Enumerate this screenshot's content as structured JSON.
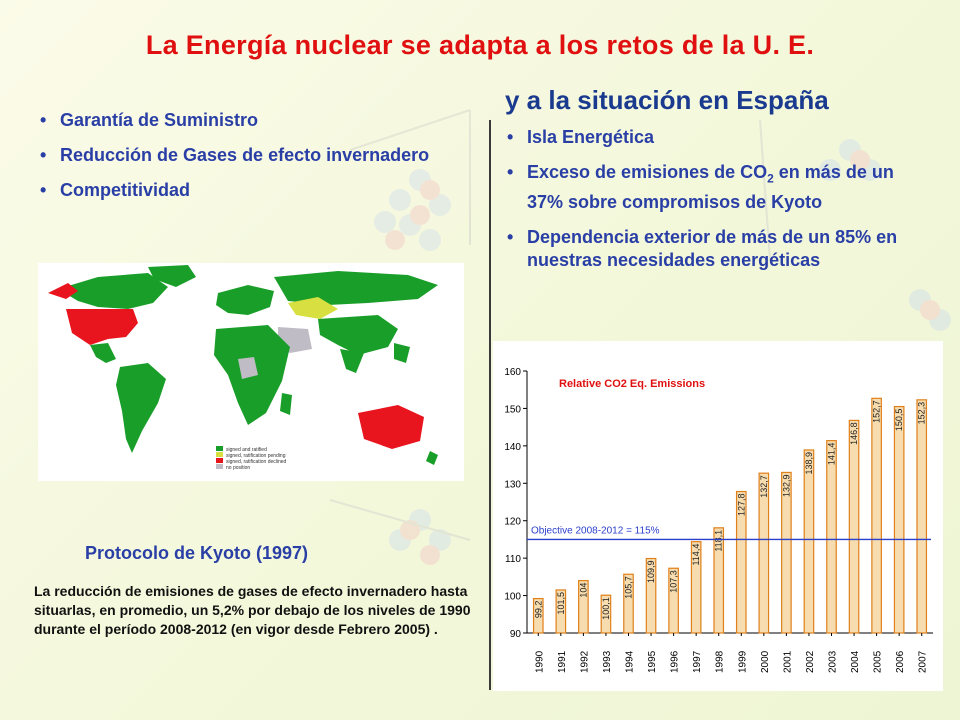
{
  "slide": {
    "title": "La Energía nuclear se adapta a los retos de la U. E.",
    "subtitle": "y a la situación en España",
    "left_bullets": [
      "Garantía de Suministro",
      "Reducción de Gases de efecto invernadero",
      "Competitividad"
    ],
    "right_bullets": [
      {
        "before": "Isla Energética",
        "sub": "",
        "after": ""
      },
      {
        "before": "Exceso de emisiones de CO",
        "sub": "2",
        "after": " en más de un 37% sobre compromisos de Kyoto"
      },
      {
        "before": "Dependencia exterior de más de un 85% en nuestras necesidades energéticas",
        "sub": "",
        "after": ""
      }
    ],
    "map_legend": [
      {
        "label": "signed and ratified",
        "color": "#1a9e2a"
      },
      {
        "label": "signed, ratification pending",
        "color": "#d7e040"
      },
      {
        "label": "signed, ratification declined",
        "color": "#e8141e"
      },
      {
        "label": "no position",
        "color": "#c0bcc6"
      }
    ],
    "protocol_title": "Protocolo de Kyoto (1997)",
    "protocol_desc": "La reducción de emisiones de gases de efecto invernadero hasta situarlas, en promedio, un 5,2% por debajo de los niveles de 1990 durante el período 2008-2012 (en vigor desde Febrero 2005) ."
  },
  "chart_data": {
    "type": "bar",
    "title": "Relative CO2 Eq. Emissions",
    "categories": [
      "1990",
      "1991",
      "1992",
      "1993",
      "1994",
      "1995",
      "1996",
      "1997",
      "1998",
      "1999",
      "2000",
      "2001",
      "2002",
      "2003",
      "2004",
      "2005",
      "2006",
      "2007"
    ],
    "values": [
      99.2,
      101.5,
      104,
      100.1,
      105.7,
      109.9,
      107.3,
      114.4,
      118.1,
      127.8,
      132.7,
      132.9,
      138.9,
      141.4,
      146.8,
      152.7,
      150.5,
      152.3
    ],
    "labels": [
      "99,2",
      "101,5",
      "104",
      "100,1",
      "105,7",
      "109,9",
      "107,3",
      "114,4",
      "118,1",
      "127,8",
      "132,7",
      "132,9",
      "138,9",
      "141,4",
      "146,8",
      "152,7",
      "150,5",
      "152,3"
    ],
    "ylim": [
      90,
      160
    ],
    "yticks": [
      90,
      100,
      110,
      120,
      130,
      140,
      150,
      160
    ],
    "objective": {
      "label": "Objective 2008-2012 = 115%",
      "value": 115
    },
    "bar_color": "#f6dcae",
    "bar_edge": "#e0801a",
    "title_color": "#e01010",
    "objective_color": "#2a3fcc"
  }
}
